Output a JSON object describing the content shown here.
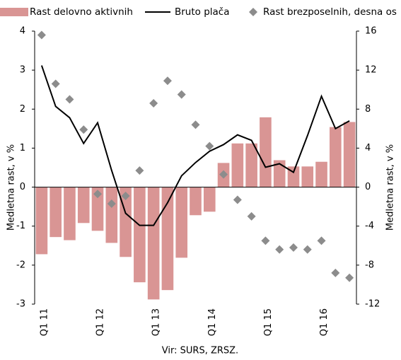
{
  "chart_data": {
    "type": "bar",
    "categories": [
      "Q1 11",
      null,
      null,
      null,
      "Q1 12",
      null,
      null,
      null,
      "Q1 13",
      null,
      null,
      null,
      "Q1 14",
      null,
      null,
      null,
      "Q1 15",
      null,
      null,
      null,
      "Q1 16",
      null,
      null
    ],
    "series": [
      {
        "name": "Rast delovno aktivnih",
        "type": "bar",
        "color": "#d99594",
        "values": [
          -1.72,
          -1.28,
          -1.36,
          -0.92,
          -1.12,
          -1.43,
          -1.79,
          -2.44,
          -2.88,
          -2.64,
          -1.81,
          -0.72,
          -0.63,
          0.62,
          1.12,
          1.12,
          1.79,
          0.69,
          0.53,
          0.53,
          0.65,
          1.54,
          1.67
        ]
      },
      {
        "name": "Bruto plača",
        "type": "line",
        "color": "#000000",
        "values": [
          3.12,
          2.07,
          1.78,
          1.12,
          1.65,
          0.43,
          -0.67,
          -0.98,
          -0.98,
          -0.4,
          0.29,
          0.63,
          0.92,
          1.09,
          1.34,
          1.2,
          0.51,
          0.6,
          0.38,
          1.32,
          2.33,
          1.5,
          1.7
        ]
      },
      {
        "name": "Rast brezposelnih, desna os",
        "type": "scatter",
        "axis": "y2",
        "color": "#8c8c8c",
        "values": [
          15.6,
          10.6,
          9.0,
          5.9,
          -0.7,
          -1.7,
          -0.9,
          1.7,
          8.6,
          10.9,
          9.5,
          6.4,
          4.2,
          1.3,
          -1.3,
          -3.0,
          -5.5,
          -6.4,
          -6.2,
          -6.4,
          -5.5,
          -8.8,
          -9.3
        ]
      }
    ],
    "ylabel": "Medletna rast, v %",
    "y2label": "Medletna rast, v %",
    "ylim": [
      -3,
      4
    ],
    "yticks": [
      -3,
      -2,
      -1,
      0,
      1,
      2,
      3,
      4
    ],
    "y2lim": [
      -12,
      16
    ],
    "y2ticks": [
      -12,
      -8,
      -4,
      0,
      4,
      8,
      12,
      16
    ],
    "source": "Vir: SURS, ZRSZ."
  }
}
